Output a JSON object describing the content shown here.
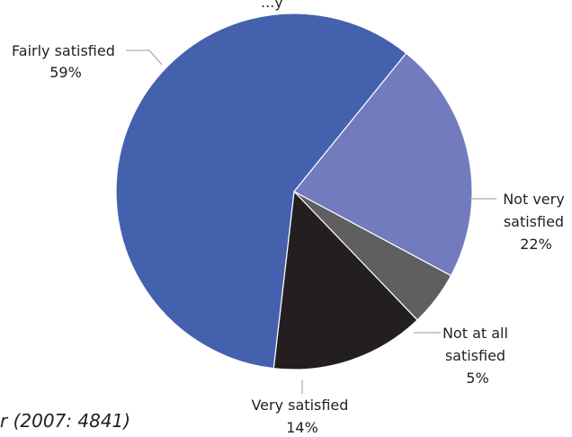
{
  "chart_data": {
    "type": "pie",
    "slices": [
      {
        "label_lines": [
          "Not very",
          "satisfied"
        ],
        "value": 22,
        "value_label": "22%",
        "color": "#717bbd"
      },
      {
        "label_lines": [
          "Not at all",
          "satisfied"
        ],
        "value": 5,
        "value_label": "5%",
        "color": "#5f5f62"
      },
      {
        "label_lines": [
          "Very satisfied"
        ],
        "value": 14,
        "value_label": "14%",
        "color": "#231f20"
      },
      {
        "label_lines": [
          "Fairly satisfied"
        ],
        "value": 59,
        "value_label": "59%",
        "color": "#4461ae"
      }
    ],
    "title": "",
    "legend": "none"
  },
  "fragments": {
    "top_text": "...y",
    "bottom_left_text": "r (2007: 4841)"
  }
}
